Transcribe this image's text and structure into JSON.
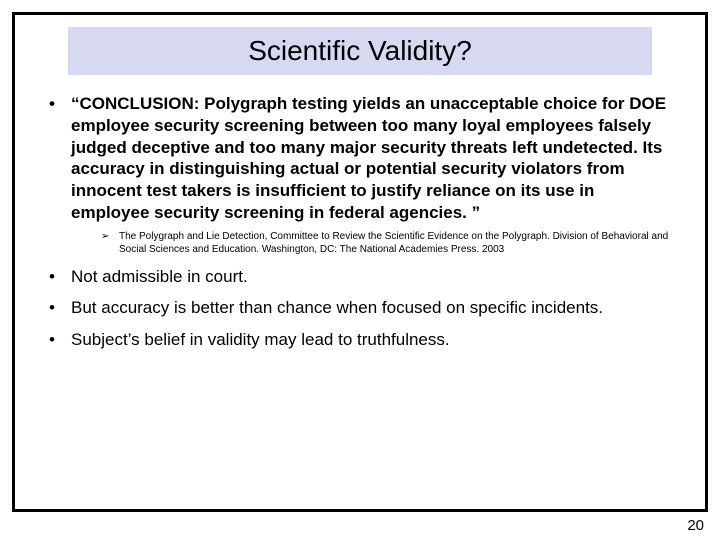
{
  "slide": {
    "title": "Scientific Validity?",
    "title_bg": "#d6d9f0",
    "title_fontsize": 28,
    "border_color": "#000000",
    "bullets": [
      {
        "text": "“CONCLUSION: Polygraph testing yields an unacceptable choice for DOE employee security screening between too many loyal employees falsely judged deceptive and too many major security threats left undetected. Its accuracy in distinguishing actual or potential security violators from innocent test takers is insufficient to justify reliance on its use in employee security screening in federal agencies. ”",
        "bold": true,
        "sub": [
          "The Polygraph and Lie Detection, Committee to Review the Scientific Evidence on the Polygraph. Division of Behavioral and Social Sciences and Education. Washington, DC: The National Academies Press. 2003"
        ]
      },
      {
        "text": "Not admissible in court.",
        "bold": false
      },
      {
        "text": "But accuracy is better than chance when focused on specific incidents.",
        "bold": false
      },
      {
        "text": "Subject’s belief in validity may lead to truthfulness.",
        "bold": false
      }
    ],
    "page_number": "20",
    "body_fontsize": 17,
    "citation_fontsize": 10
  }
}
